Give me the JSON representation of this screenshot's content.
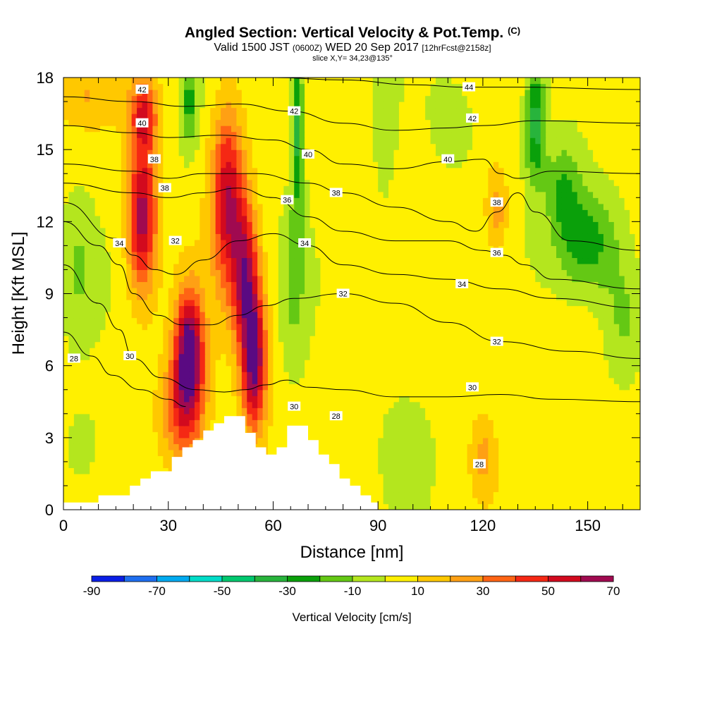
{
  "header": {
    "title": "Angled Section: Vertical Velocity & Pot.Temp.",
    "copyright": "(C)",
    "valid_prefix": "Valid 1500 JST",
    "utc": "(0600Z)",
    "valid_date": "WED 20 Sep 2017",
    "forecast": "[12hrFcst@2158z]",
    "slice": "slice X,Y= 34,23@135°"
  },
  "chart_data": {
    "type": "heatmap",
    "xlabel": "Distance [nm]",
    "ylabel": "Height [Kft MSL]",
    "xlim": [
      0,
      165
    ],
    "ylim": [
      0,
      18
    ],
    "x_ticks": [
      "0",
      "30",
      "60",
      "90",
      "120",
      "150"
    ],
    "x_tick_values": [
      0,
      30,
      60,
      90,
      120,
      150
    ],
    "y_ticks": [
      "0",
      "3",
      "6",
      "9",
      "12",
      "15",
      "18"
    ],
    "y_tick_values": [
      0,
      3,
      6,
      9,
      12,
      15,
      18
    ],
    "colorbar": {
      "title": "Vertical Velocity [cm/s]",
      "labels": [
        "-90",
        "-70",
        "-50",
        "-30",
        "-10",
        "10",
        "30",
        "50",
        "70"
      ],
      "label_values": [
        -90,
        -70,
        -50,
        -30,
        -10,
        10,
        30,
        50,
        70
      ],
      "bounds": [
        -90,
        -80,
        -70,
        -60,
        -50,
        -40,
        -30,
        -20,
        -10,
        0,
        10,
        20,
        30,
        40,
        50,
        60,
        70
      ],
      "colors": [
        "#0a1ee6",
        "#1e6ef0",
        "#00aaf0",
        "#00dcc8",
        "#00c86e",
        "#28b43c",
        "#0aa00a",
        "#64c814",
        "#b4e61e",
        "#fff000",
        "#ffc800",
        "#ffa014",
        "#ff6414",
        "#f52814",
        "#d20a1e",
        "#a00a50",
        "#5a0a82"
      ]
    },
    "terrain": [
      [
        0,
        0.3
      ],
      [
        10,
        0.3
      ],
      [
        10,
        0.6
      ],
      [
        16,
        0.6
      ],
      [
        16,
        0.6
      ],
      [
        19,
        0.6
      ],
      [
        19,
        1.0
      ],
      [
        22,
        1.0
      ],
      [
        22,
        1.3
      ],
      [
        25,
        1.3
      ],
      [
        25,
        1.6
      ],
      [
        31,
        1.6
      ],
      [
        31,
        2.2
      ],
      [
        34,
        2.2
      ],
      [
        34,
        2.6
      ],
      [
        37,
        2.6
      ],
      [
        37,
        2.9
      ],
      [
        40,
        2.9
      ],
      [
        40,
        3.3
      ],
      [
        43,
        3.3
      ],
      [
        43,
        3.6
      ],
      [
        46,
        3.6
      ],
      [
        46,
        3.9
      ],
      [
        52,
        3.9
      ],
      [
        52,
        3.2
      ],
      [
        55,
        3.2
      ],
      [
        55,
        2.6
      ],
      [
        58,
        2.6
      ],
      [
        58,
        2.3
      ],
      [
        61,
        2.3
      ],
      [
        61,
        2.6
      ],
      [
        64,
        2.6
      ],
      [
        64,
        3.5
      ],
      [
        70,
        3.5
      ],
      [
        70,
        2.9
      ],
      [
        73,
        2.9
      ],
      [
        73,
        2.3
      ],
      [
        76,
        2.3
      ],
      [
        76,
        1.9
      ],
      [
        79,
        1.9
      ],
      [
        79,
        1.3
      ],
      [
        82,
        1.3
      ],
      [
        82,
        1.0
      ],
      [
        85,
        1.0
      ],
      [
        85,
        0.6
      ],
      [
        88,
        0.6
      ],
      [
        88,
        0.3
      ],
      [
        90,
        0.3
      ],
      [
        90,
        0
      ]
    ],
    "velocity_features": [
      {
        "x": 22.5,
        "y": 12.2,
        "sx": 4.2,
        "sy": 3.2,
        "v": 62
      },
      {
        "x": 23,
        "y": 16.5,
        "sx": 4,
        "sy": 1.6,
        "v": 40
      },
      {
        "x": 36,
        "y": 6.8,
        "sx": 4,
        "sy": 2.4,
        "v": 68
      },
      {
        "x": 34.5,
        "y": 4.2,
        "sx": 6,
        "sy": 2.4,
        "v": 42
      },
      {
        "x": 47,
        "y": 13,
        "sx": 4.6,
        "sy": 3.8,
        "v": 55
      },
      {
        "x": 54.5,
        "y": 6.2,
        "sx": 3.6,
        "sy": 3,
        "v": 68
      },
      {
        "x": 52,
        "y": 9.8,
        "sx": 3.6,
        "sy": 3,
        "v": 50
      },
      {
        "x": 67,
        "y": 16,
        "sx": 1.8,
        "sy": 3.5,
        "v": -38
      },
      {
        "x": 66,
        "y": 9.5,
        "sx": 3.5,
        "sy": 3.5,
        "v": -15
      },
      {
        "x": 36,
        "y": 17,
        "sx": 2.5,
        "sy": 2,
        "v": -25
      },
      {
        "x": 135,
        "y": 16.2,
        "sx": 3,
        "sy": 2.6,
        "v": -40
      },
      {
        "x": 150,
        "y": 11.2,
        "sx": 9,
        "sy": 2.2,
        "v": -32
      },
      {
        "x": 143,
        "y": 13.5,
        "sx": 5,
        "sy": 2,
        "v": -22
      },
      {
        "x": 160,
        "y": 8,
        "sx": 6,
        "sy": 2.5,
        "v": -18
      },
      {
        "x": 124,
        "y": 12.4,
        "sx": 3.2,
        "sy": 1.8,
        "v": 22
      },
      {
        "x": 120,
        "y": 2.2,
        "sx": 3.5,
        "sy": 1.6,
        "v": 18
      },
      {
        "x": 4,
        "y": 10,
        "sx": 5,
        "sy": 3,
        "v": -14
      },
      {
        "x": 6,
        "y": 2.5,
        "sx": 6,
        "sy": 2,
        "v": -8
      },
      {
        "x": 6,
        "y": 17.2,
        "sx": 9,
        "sy": 1.3,
        "v": 14
      },
      {
        "x": 92,
        "y": 16,
        "sx": 3,
        "sy": 3.5,
        "v": -10
      },
      {
        "x": 112,
        "y": 16,
        "sx": 6,
        "sy": 1.8,
        "v": -10
      },
      {
        "x": 98,
        "y": 3,
        "sx": 8,
        "sy": 2.6,
        "v": -6
      }
    ],
    "theta_contours": [
      {
        "label": "28",
        "points": [
          [
            0,
            7.4
          ],
          [
            8,
            6.4
          ],
          [
            14,
            5.6
          ],
          [
            22,
            5.0
          ],
          [
            30,
            4.6
          ],
          [
            35,
            4.3
          ]
        ]
      },
      {
        "label": "30",
        "points": [
          [
            0,
            10.2
          ],
          [
            10,
            8.6
          ],
          [
            16,
            7.5
          ],
          [
            20,
            6.3
          ],
          [
            28,
            5.5
          ],
          [
            38,
            5.0
          ],
          [
            46,
            4.9
          ],
          [
            52,
            5.0
          ],
          [
            58,
            5.2
          ],
          [
            64,
            5.4
          ],
          [
            70,
            5.1
          ],
          [
            80,
            5.0
          ],
          [
            95,
            4.7
          ],
          [
            110,
            4.7
          ],
          [
            125,
            4.8
          ],
          [
            140,
            4.6
          ],
          [
            165,
            4.5
          ]
        ]
      },
      {
        "label": "32",
        "points": [
          [
            0,
            12.0
          ],
          [
            10,
            11.0
          ],
          [
            16,
            10.2
          ],
          [
            20,
            9.0
          ],
          [
            27,
            8.1
          ],
          [
            34,
            7.7
          ],
          [
            42,
            7.7
          ],
          [
            50,
            8.1
          ],
          [
            58,
            8.5
          ],
          [
            66,
            8.8
          ],
          [
            80,
            9.0
          ],
          [
            95,
            8.6
          ],
          [
            110,
            7.8
          ],
          [
            125,
            7.0
          ],
          [
            145,
            6.6
          ],
          [
            165,
            6.3
          ]
        ]
      },
      {
        "label": "34",
        "points": [
          [
            0,
            12.8
          ],
          [
            15,
            11.3
          ],
          [
            20,
            10.6
          ],
          [
            26,
            10.0
          ],
          [
            32,
            9.8
          ],
          [
            40,
            10.4
          ],
          [
            50,
            11.2
          ],
          [
            60,
            11.5
          ],
          [
            70,
            11.0
          ],
          [
            80,
            10.2
          ],
          [
            95,
            9.8
          ],
          [
            110,
            9.6
          ],
          [
            125,
            9.2
          ],
          [
            140,
            8.8
          ],
          [
            165,
            8.4
          ]
        ]
      },
      {
        "label": "36",
        "points": [
          [
            0,
            13.6
          ],
          [
            20,
            13.2
          ],
          [
            30,
            13.0
          ],
          [
            40,
            13.2
          ],
          [
            50,
            13.4
          ],
          [
            60,
            13.0
          ],
          [
            70,
            12.2
          ],
          [
            80,
            11.6
          ],
          [
            95,
            11.2
          ],
          [
            110,
            11.2
          ],
          [
            120,
            10.8
          ],
          [
            126,
            10.6
          ],
          [
            132,
            10.2
          ],
          [
            140,
            9.6
          ],
          [
            165,
            9.2
          ]
        ]
      },
      {
        "label": "38",
        "points": [
          [
            0,
            14.4
          ],
          [
            20,
            14.1
          ],
          [
            30,
            13.8
          ],
          [
            40,
            14.0
          ],
          [
            55,
            14.0
          ],
          [
            70,
            13.6
          ],
          [
            80,
            13.2
          ],
          [
            95,
            12.6
          ],
          [
            110,
            12.0
          ],
          [
            118,
            11.6
          ],
          [
            124,
            12.4
          ],
          [
            130,
            13.2
          ],
          [
            135,
            12.4
          ],
          [
            145,
            11.2
          ],
          [
            165,
            10.8
          ]
        ]
      },
      {
        "label": "40",
        "points": [
          [
            0,
            16.0
          ],
          [
            20,
            15.7
          ],
          [
            30,
            15.5
          ],
          [
            45,
            15.6
          ],
          [
            60,
            15.4
          ],
          [
            70,
            15.0
          ],
          [
            80,
            14.4
          ],
          [
            95,
            14.2
          ],
          [
            110,
            14.5
          ],
          [
            120,
            14.6
          ],
          [
            125,
            14.0
          ],
          [
            130,
            13.8
          ],
          [
            140,
            14.1
          ],
          [
            165,
            14.0
          ]
        ]
      },
      {
        "label": "42",
        "points": [
          [
            0,
            17.2
          ],
          [
            20,
            17.0
          ],
          [
            35,
            16.8
          ],
          [
            50,
            16.9
          ],
          [
            65,
            16.6
          ],
          [
            80,
            16.1
          ],
          [
            95,
            15.8
          ],
          [
            110,
            15.9
          ],
          [
            120,
            16.0
          ],
          [
            135,
            16.2
          ],
          [
            165,
            16.1
          ]
        ]
      },
      {
        "label": "44",
        "points": [
          [
            60,
            18
          ],
          [
            80,
            17.9
          ],
          [
            100,
            17.7
          ],
          [
            115,
            17.6
          ],
          [
            130,
            17.6
          ],
          [
            165,
            17.5
          ]
        ]
      }
    ],
    "contour_labels": [
      {
        "text": "42",
        "x": 22.5,
        "y": 17.5
      },
      {
        "text": "40",
        "x": 22.5,
        "y": 16.1
      },
      {
        "text": "38",
        "x": 26,
        "y": 14.6
      },
      {
        "text": "38",
        "x": 29,
        "y": 13.4
      },
      {
        "text": "34",
        "x": 16,
        "y": 11.1
      },
      {
        "text": "32",
        "x": 32,
        "y": 11.2
      },
      {
        "text": "30",
        "x": 19,
        "y": 6.4
      },
      {
        "text": "28",
        "x": 3,
        "y": 6.3
      },
      {
        "text": "42",
        "x": 66,
        "y": 16.6
      },
      {
        "text": "40",
        "x": 70,
        "y": 14.8
      },
      {
        "text": "36",
        "x": 64,
        "y": 12.9
      },
      {
        "text": "38",
        "x": 78,
        "y": 13.2
      },
      {
        "text": "34",
        "x": 69,
        "y": 11.1
      },
      {
        "text": "32",
        "x": 80,
        "y": 9.0
      },
      {
        "text": "30",
        "x": 66,
        "y": 4.3
      },
      {
        "text": "28",
        "x": 78,
        "y": 3.9
      },
      {
        "text": "44",
        "x": 116,
        "y": 17.6
      },
      {
        "text": "42",
        "x": 117,
        "y": 16.3
      },
      {
        "text": "40",
        "x": 110,
        "y": 14.6
      },
      {
        "text": "38",
        "x": 124,
        "y": 12.8
      },
      {
        "text": "36",
        "x": 124,
        "y": 10.7
      },
      {
        "text": "34",
        "x": 114,
        "y": 9.4
      },
      {
        "text": "32",
        "x": 124,
        "y": 7.0
      },
      {
        "text": "30",
        "x": 117,
        "y": 5.1
      },
      {
        "text": "28",
        "x": 119,
        "y": 1.9
      }
    ]
  }
}
